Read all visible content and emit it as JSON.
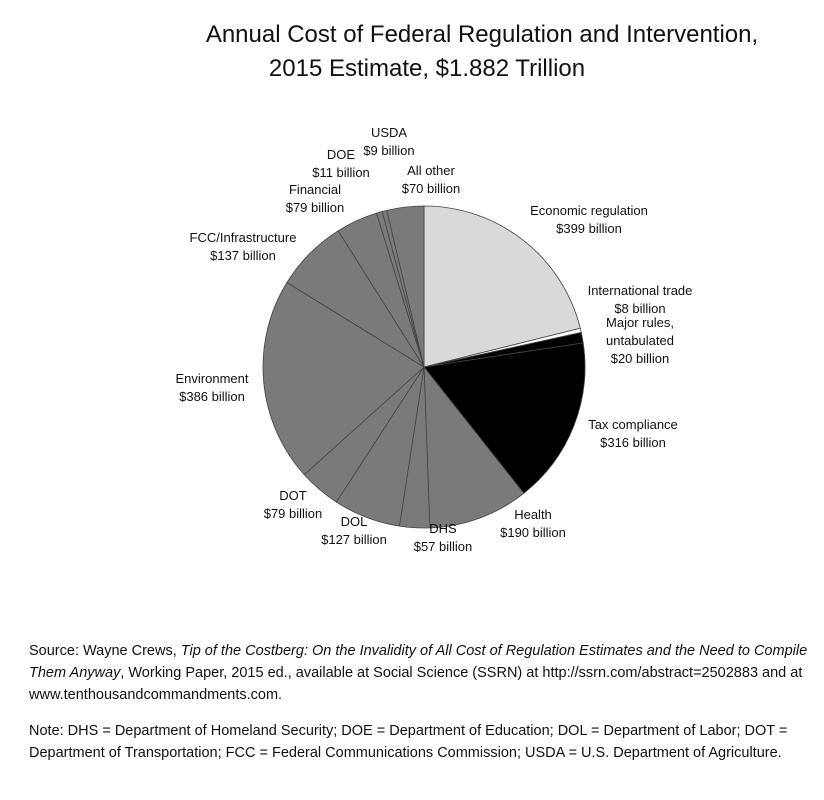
{
  "chart_data": {
    "type": "pie",
    "title_line1": "Annual Cost of Federal Regulation and Intervention,",
    "title_line2": "2015 Estimate, $1.882 Trillion",
    "unit": "billion",
    "slices": [
      {
        "name": "Economic regulation",
        "value": 399,
        "value_label": "$399 billion",
        "color": "#d9d9d9"
      },
      {
        "name": "International trade",
        "value": 8,
        "value_label": "$8 billion",
        "color": "#ffffff"
      },
      {
        "name": "Major rules, untabulated",
        "value": 20,
        "value_label": "$20 billion",
        "color": "#000000"
      },
      {
        "name": "Tax compliance",
        "value": 316,
        "value_label": "$316 billion",
        "color": "#000000"
      },
      {
        "name": "Health",
        "value": 190,
        "value_label": "$190 billion",
        "color": "#7a7a7a"
      },
      {
        "name": "DHS",
        "value": 57,
        "value_label": "$57 billion",
        "color": "#7a7a7a"
      },
      {
        "name": "DOL",
        "value": 127,
        "value_label": "$127 billion",
        "color": "#7a7a7a"
      },
      {
        "name": "DOT",
        "value": 79,
        "value_label": "$79 billion",
        "color": "#7a7a7a"
      },
      {
        "name": "Environment",
        "value": 386,
        "value_label": "$386 billion",
        "color": "#7a7a7a"
      },
      {
        "name": "FCC/Infrastructure",
        "value": 137,
        "value_label": "$137 billion",
        "color": "#7a7a7a"
      },
      {
        "name": "Financial",
        "value": 79,
        "value_label": "$79 billion",
        "color": "#7a7a7a"
      },
      {
        "name": "DOE",
        "value": 11,
        "value_label": "$11 billion",
        "color": "#7a7a7a"
      },
      {
        "name": "USDA",
        "value": 9,
        "value_label": "$9 billion",
        "color": "#7a7a7a"
      },
      {
        "name": "All other",
        "value": 70,
        "value_label": "$70 billion",
        "color": "#7a7a7a"
      }
    ]
  },
  "source": {
    "prefix": "Source: Wayne Crews, ",
    "title_italic": "Tip of the Costberg: On the Invalidity of All Cost of Regulation Estimates and the Need to Compile Them Anyway",
    "suffix": ", Working Paper, 2015 ed., available at Social Science (SSRN) at http://ssrn.com/abstract=2502883 and at www.tenthousandcommandments.com."
  },
  "note": "Note: DHS = Department of Homeland Security; DOE = Department of Education; DOL = Department of Labor; DOT = Department of Transportation; FCC = Federal Communications Commission; USDA = U.S. Department of Agriculture."
}
